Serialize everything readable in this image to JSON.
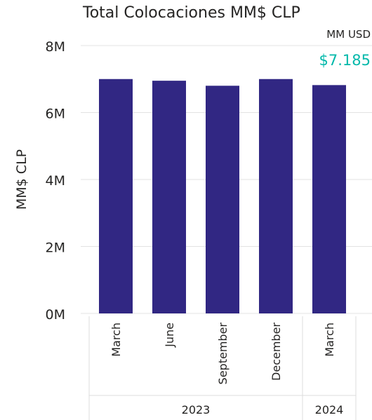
{
  "chart_data": {
    "type": "bar",
    "title": "Total Colocaciones MM$ CLP",
    "ylabel": "MM$ CLP",
    "xlabel": "",
    "ylim": [
      0,
      8000000
    ],
    "y_ticks": [
      0,
      2000000,
      4000000,
      6000000,
      8000000
    ],
    "y_tick_labels": [
      "0M",
      "2M",
      "4M",
      "6M",
      "8M"
    ],
    "categories": [
      "March",
      "June",
      "September",
      "December",
      "March"
    ],
    "groups": [
      {
        "label": "2023",
        "span": 4
      },
      {
        "label": "2024",
        "span": 1
      }
    ],
    "values": [
      7000000,
      6950000,
      6800000,
      7000000,
      6820000
    ],
    "bar_color": "#312783",
    "grid": true
  },
  "kpi": {
    "label": "MM USD",
    "value": "$7.185",
    "color": "#01b8aa"
  }
}
